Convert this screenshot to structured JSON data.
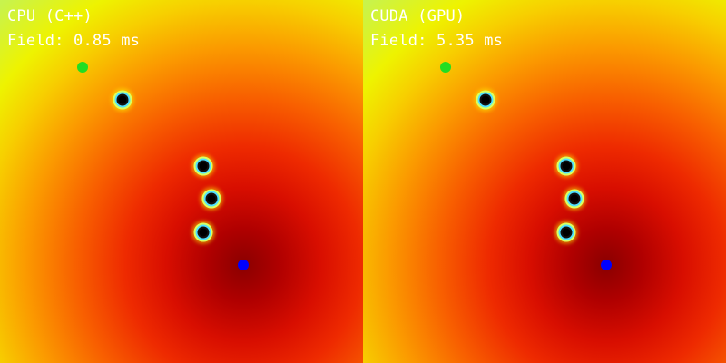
{
  "window": {
    "panels": [
      {
        "title": "CPU (C++)",
        "timing": "Field: 0.85 ms",
        "start": {
          "color": "#22dd22"
        },
        "goal": {
          "color": "#0000ff"
        },
        "obstacles": 4
      },
      {
        "title": "CUDA (GPU)",
        "timing": "Field: 5.35 ms",
        "start": {
          "color": "#22dd22"
        },
        "goal": {
          "color": "#0000ff"
        },
        "obstacles": 4
      }
    ],
    "colormap": [
      "#8a0000",
      "#d80e00",
      "#f86000",
      "#f7cf00",
      "#eef300",
      "#b8f07a"
    ]
  }
}
